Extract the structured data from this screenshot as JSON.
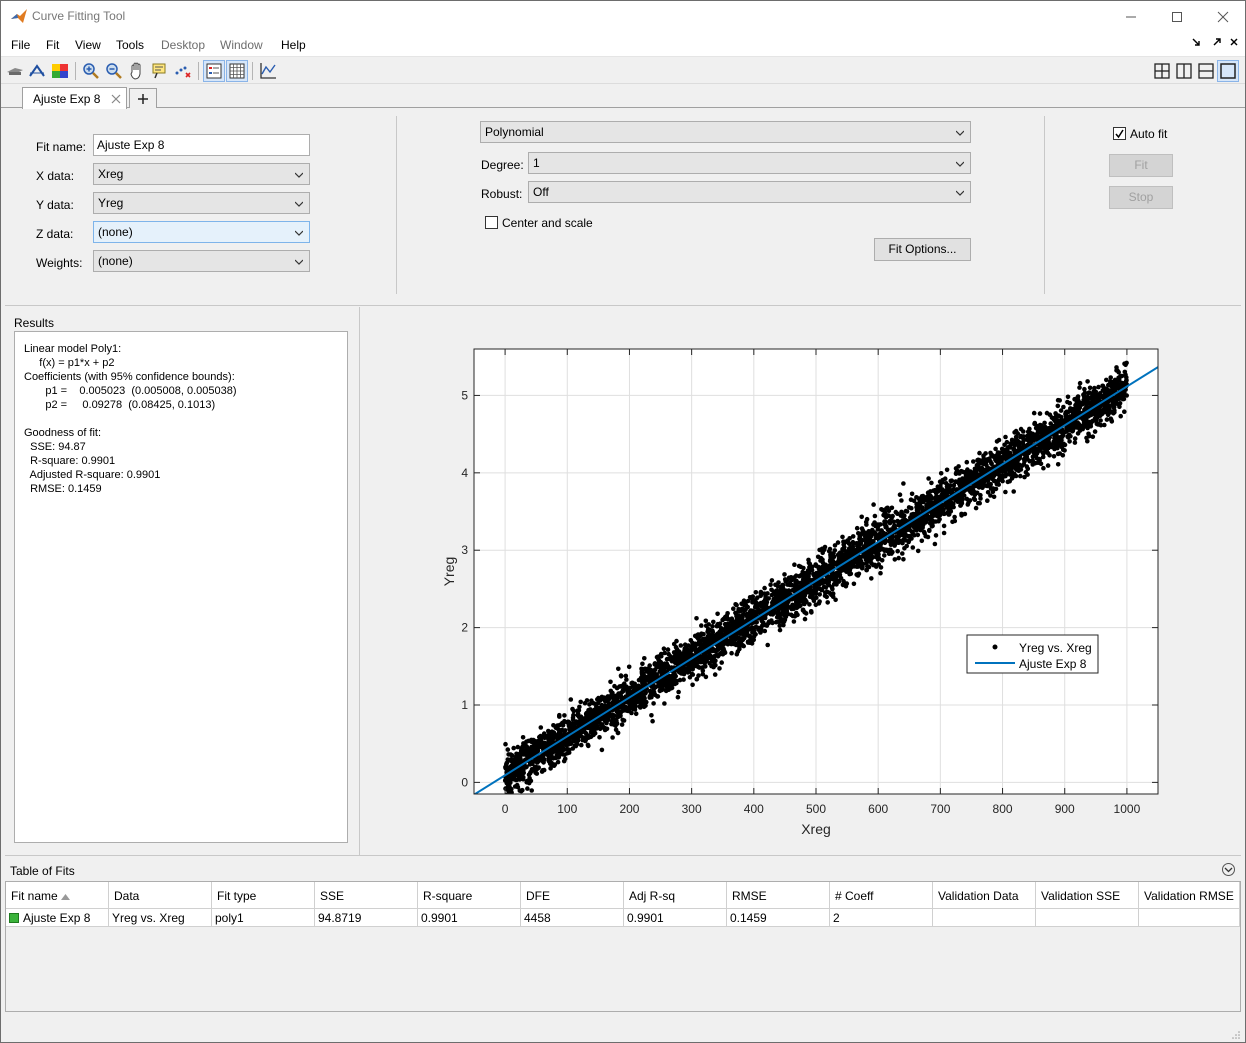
{
  "window": {
    "title": "Curve Fitting Tool"
  },
  "menu": [
    "File",
    "Fit",
    "View",
    "Tools",
    "Desktop",
    "Window",
    "Help"
  ],
  "tab": {
    "label": "Ajuste Exp 8"
  },
  "fit_settings": {
    "fit_name_label": "Fit name:",
    "fit_name": "Ajuste Exp 8",
    "x_label": "X data:",
    "x_value": "Xreg",
    "y_label": "Y data:",
    "y_value": "Yreg",
    "z_label": "Z data:",
    "z_value": "(none)",
    "weights_label": "Weights:",
    "weights_value": "(none)",
    "fit_type": "Polynomial",
    "degree_label": "Degree:",
    "degree_value": "1",
    "robust_label": "Robust:",
    "robust_value": "Off",
    "center_scale_label": "Center and scale",
    "fit_options_button": "Fit Options...",
    "auto_fit_label": "Auto fit",
    "fit_button": "Fit",
    "stop_button": "Stop"
  },
  "results": {
    "title": "Results",
    "lines": [
      "Linear model Poly1:",
      "     f(x) = p1*x + p2",
      "Coefficients (with 95% confidence bounds):",
      "       p1 =    0.005023  (0.005008, 0.005038)",
      "       p2 =     0.09278  (0.08425, 0.1013)",
      "",
      "Goodness of fit:",
      "  SSE: 94.87",
      "  R-square: 0.9901",
      "  Adjusted R-square: 0.9901",
      "  RMSE: 0.1459"
    ]
  },
  "chart_data": {
    "type": "scatter",
    "xlabel": "Xreg",
    "ylabel": "Yreg",
    "xlim": [
      -50,
      1050
    ],
    "ylim": [
      -0.15,
      5.6
    ],
    "xticks": [
      0,
      100,
      200,
      300,
      400,
      500,
      600,
      700,
      800,
      900,
      1000
    ],
    "yticks": [
      0,
      1,
      2,
      3,
      4,
      5
    ],
    "grid": true,
    "legend": {
      "placement": "lower-right",
      "entries": [
        "Yreg vs. Xreg",
        "Ajuste Exp 8"
      ]
    },
    "series": [
      {
        "name": "Yreg vs. Xreg",
        "kind": "points",
        "color": "#000000",
        "x_range": [
          0,
          1000
        ],
        "n_points": 4460
      },
      {
        "name": "Ajuste Exp 8",
        "kind": "line",
        "color": "#0072bd",
        "p1": 0.005023,
        "p2": 0.09278
      }
    ]
  },
  "table_of_fits": {
    "title": "Table of Fits",
    "columns": [
      "Fit name",
      "Data",
      "Fit type",
      "SSE",
      "R-square",
      "DFE",
      "Adj R-sq",
      "RMSE",
      "# Coeff",
      "Validation Data",
      "Validation SSE",
      "Validation RMSE"
    ],
    "rows": [
      [
        "Ajuste Exp 8",
        "Yreg vs. Xreg",
        "poly1",
        "94.8719",
        "0.9901",
        "4458",
        "0.9901",
        "0.1459",
        "2",
        "",
        "",
        ""
      ]
    ]
  },
  "colors": {
    "fit_line": "#0072bd",
    "points": "#000000",
    "fit_swatch": "#3bb33b"
  }
}
